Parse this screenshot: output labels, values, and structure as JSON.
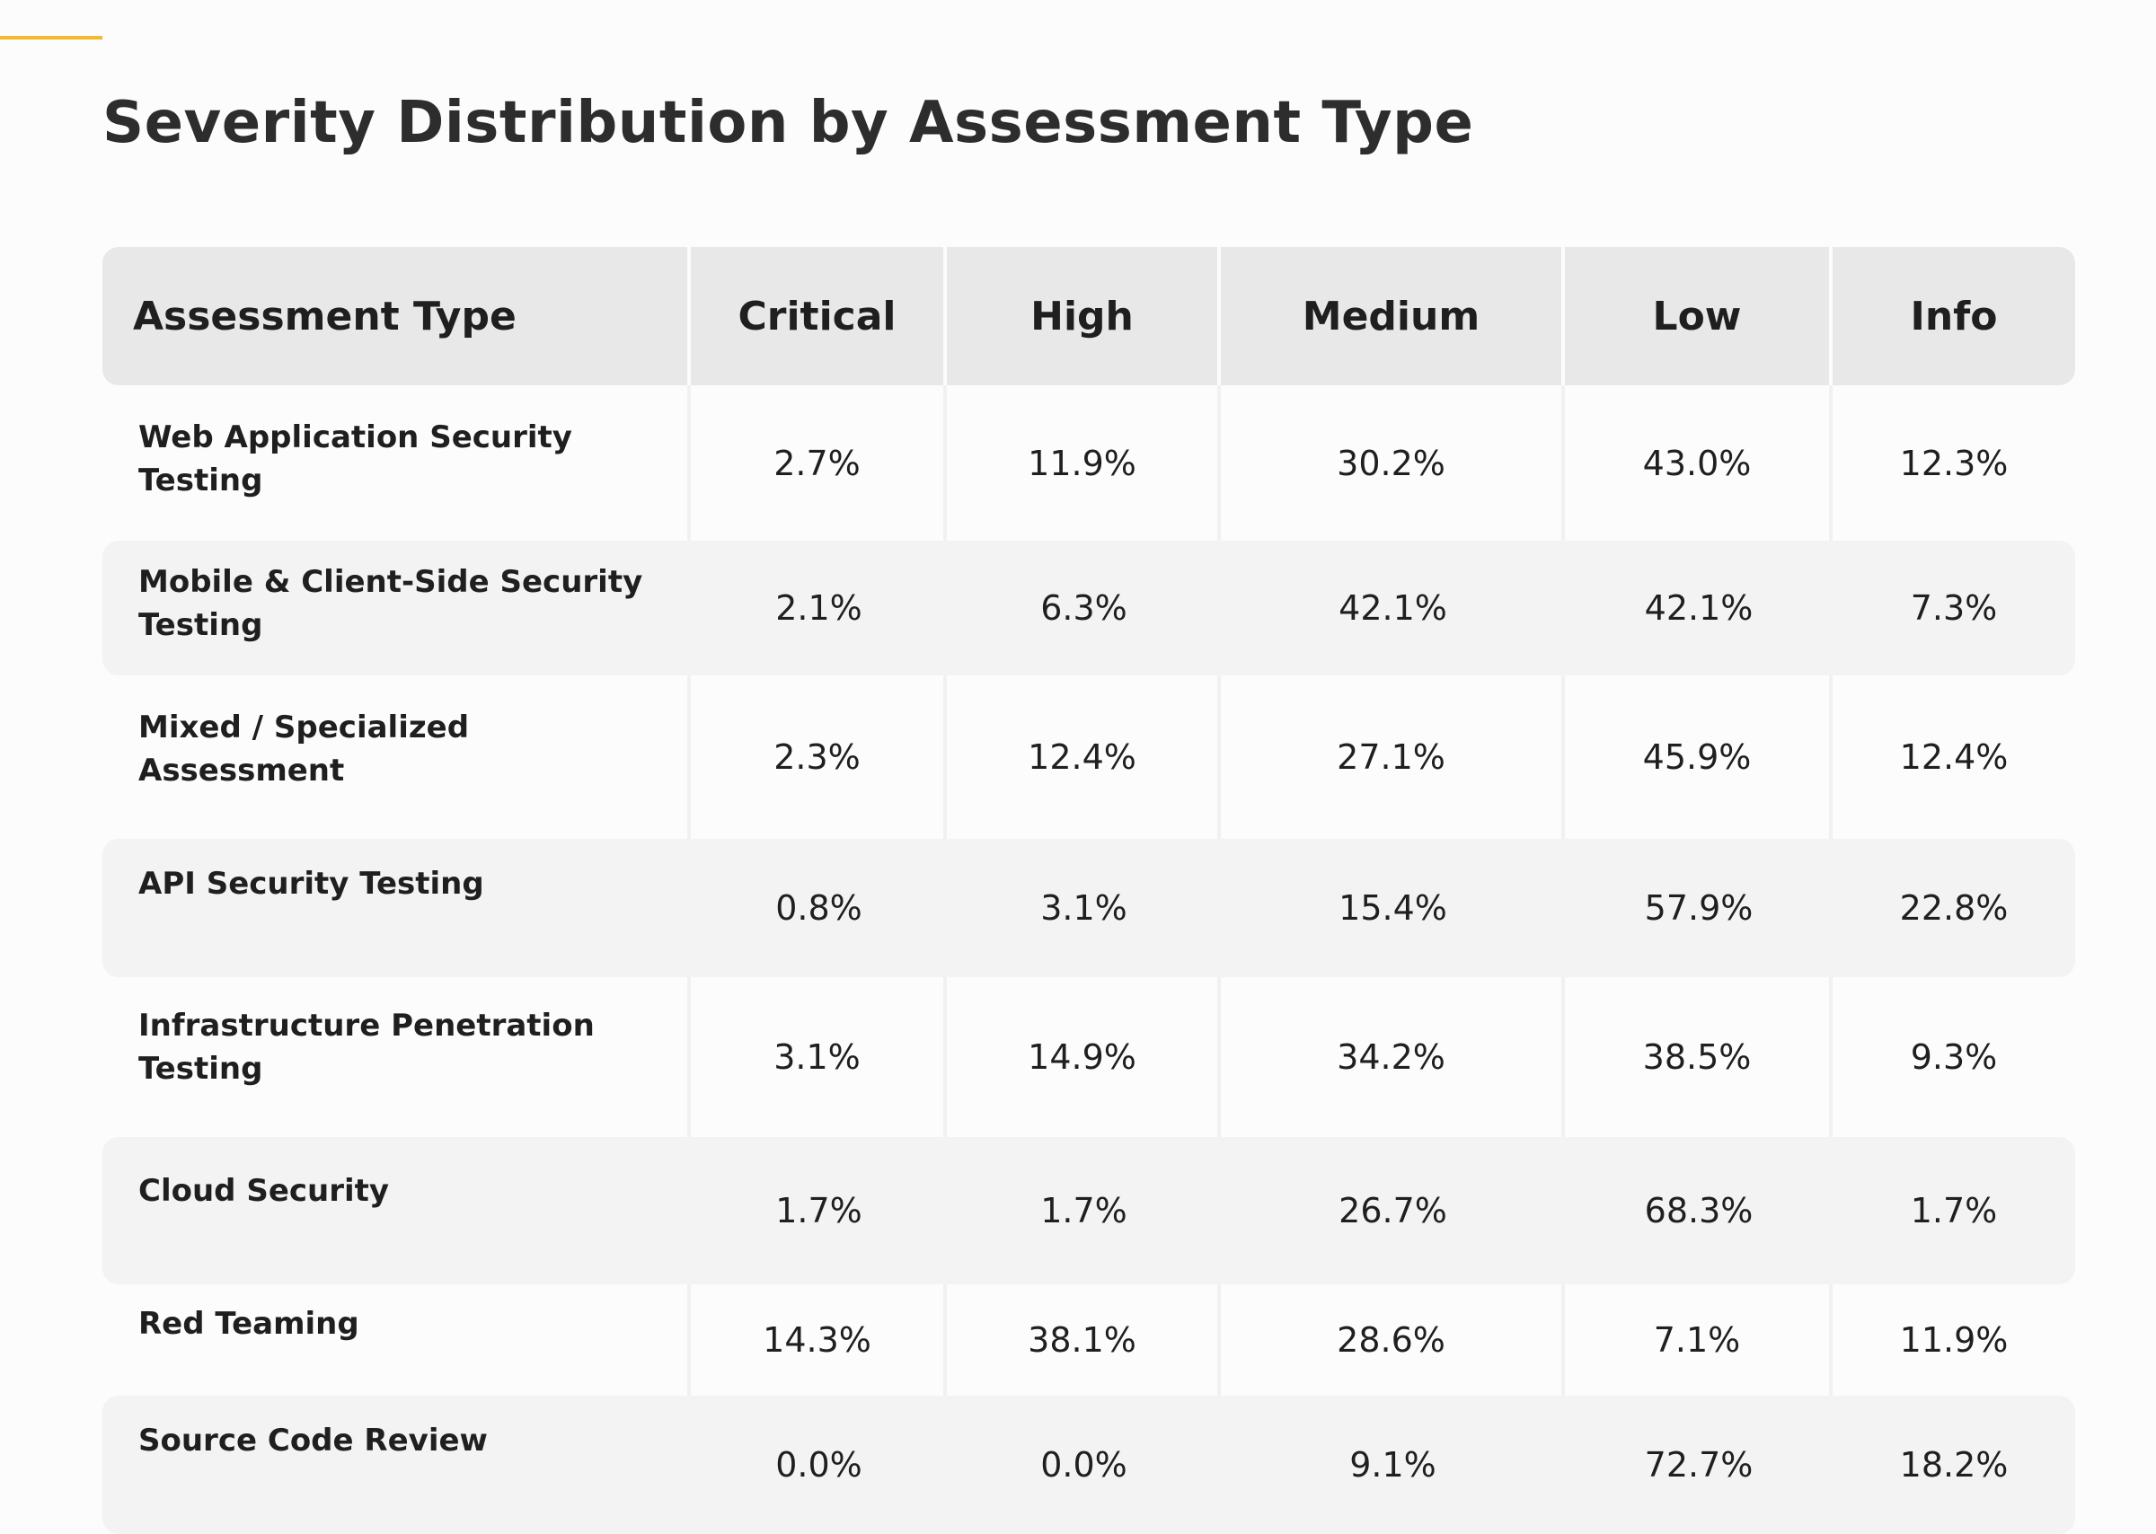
{
  "page": {
    "title": "Severity Distribution by Assessment Type",
    "accent_color": "#f5b82e"
  },
  "table": {
    "headers": [
      "Assessment Type",
      "Critical",
      "High",
      "Medium",
      "Low",
      "Info"
    ],
    "rows": [
      {
        "type": "Web Application Security Testing",
        "values": [
          "2.7%",
          "11.9%",
          "30.2%",
          "43.0%",
          "12.3%"
        ]
      },
      {
        "type": "Mobile & Client-Side Security Testing",
        "values": [
          "2.1%",
          "6.3%",
          "42.1%",
          "42.1%",
          "7.3%"
        ]
      },
      {
        "type": "Mixed / Specialized Assessment",
        "values": [
          "2.3%",
          "12.4%",
          "27.1%",
          "45.9%",
          "12.4%"
        ]
      },
      {
        "type": "API Security Testing",
        "values": [
          "0.8%",
          "3.1%",
          "15.4%",
          "57.9%",
          "22.8%"
        ]
      },
      {
        "type": "Infrastructure Penetration Testing",
        "values": [
          "3.1%",
          "14.9%",
          "34.2%",
          "38.5%",
          "9.3%"
        ]
      },
      {
        "type": "Cloud Security",
        "values": [
          "1.7%",
          "1.7%",
          "26.7%",
          "68.3%",
          "1.7%"
        ]
      },
      {
        "type": "Red Teaming",
        "values": [
          "14.3%",
          "38.1%",
          "28.6%",
          "7.1%",
          "11.9%"
        ]
      },
      {
        "type": "Source Code Review",
        "values": [
          "0.0%",
          "0.0%",
          "9.1%",
          "72.7%",
          "18.2%"
        ]
      }
    ]
  }
}
